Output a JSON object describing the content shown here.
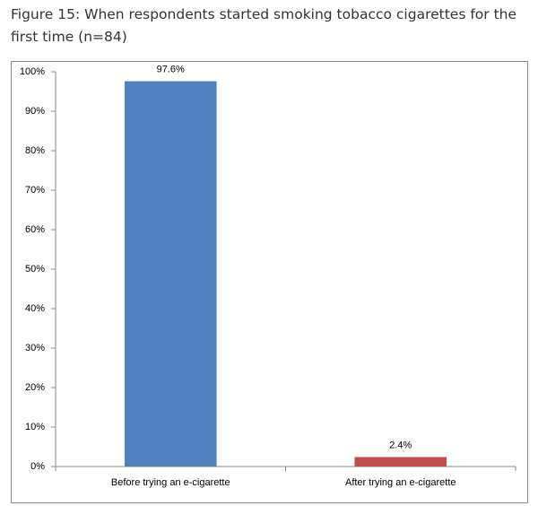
{
  "chart_data": {
    "type": "bar",
    "title": "Figure 15: When respondents started smoking tobacco cigarettes for the first time (n=84)",
    "categories": [
      "Before trying an e-cigarette",
      "After trying an e-cigarette"
    ],
    "values": [
      97.6,
      2.4
    ],
    "value_labels": [
      "97.6%",
      "2.4%"
    ],
    "colors": [
      "#4f81bd",
      "#c0504d"
    ],
    "ylim": [
      0,
      100
    ],
    "yticks": [
      {
        "value": 0,
        "label": "0%"
      },
      {
        "value": 10,
        "label": "10%"
      },
      {
        "value": 20,
        "label": "20%"
      },
      {
        "value": 30,
        "label": "30%"
      },
      {
        "value": 40,
        "label": "40%"
      },
      {
        "value": 50,
        "label": "50%"
      },
      {
        "value": 60,
        "label": "60%"
      },
      {
        "value": 70,
        "label": "70%"
      },
      {
        "value": 80,
        "label": "80%"
      },
      {
        "value": 90,
        "label": "90%"
      },
      {
        "value": 100,
        "label": "100%"
      }
    ],
    "grid": false
  }
}
